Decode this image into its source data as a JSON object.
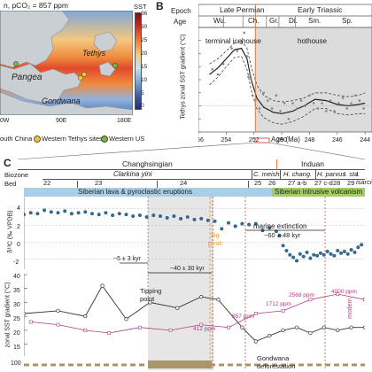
{
  "panelA": {
    "header": "n, pCO₂ = 857 ppm",
    "sst_label": "SST",
    "sst_ticks": [
      "36",
      "30",
      "25",
      "20",
      "15",
      "10",
      "5",
      "0"
    ],
    "map_labels": {
      "tethys": "Tethys",
      "pangea": "Pangea",
      "gondwana": "Gondwana"
    },
    "lon_ticks": [
      "0W",
      "90E",
      "180E"
    ],
    "legend": [
      "outh China",
      "Western Tethys sites",
      "Western US"
    ]
  },
  "panelB": {
    "letter": "B",
    "epoch_label": "Epoch",
    "age_label": "Age",
    "epochs": [
      "Late Permian",
      "Early Triassic"
    ],
    "ages": [
      "Wu.",
      "Ch.",
      "Gr.",
      "Di.",
      "Sm.",
      "Sp."
    ],
    "annotations": [
      "terminal icehouse",
      "hothouse"
    ],
    "ylabel": "Tethys zonal SST gradient (°C)",
    "xlabel": "Age (Ma)",
    "xticks": [
      "256",
      "254",
      "252",
      "250",
      "248",
      "246",
      "244"
    ],
    "yticks": [
      "40",
      "35",
      "30",
      "25",
      "20",
      "15",
      "10",
      "5",
      "0"
    ]
  },
  "panelC": {
    "letter": "C",
    "stages": [
      "Changhsingian",
      "Induan"
    ],
    "biozone_label": "Biozone",
    "bed_label": "Bed",
    "biozones": [
      "Clarkina yini",
      "C. meish.",
      "H. chang.",
      "H. parvus",
      "I. sta",
      "I. isarcica"
    ],
    "beds": [
      "22",
      "23",
      "24",
      "25",
      "26",
      "27 a-b",
      "27 c-d",
      "28",
      "29"
    ],
    "bars": [
      "Siberian lava & pyroclastic eruptions",
      "Siberian intrusive volcanism"
    ],
    "d13c_ylabel": "δ¹³C (‰ VPDB)",
    "d13c_yticks": [
      "4",
      "2",
      "0",
      "-2"
    ],
    "hg_peak": "Hg peak",
    "marine_extinction": "marine extinction",
    "extinction_age": "~60 ± 48 kyr",
    "interval_1": "~5 ± 3 kyr",
    "interval_2": "~40 ± 30 kyr",
    "tipping_point": "Tipping point",
    "co2_labels": [
      "412 ppm",
      "857 ppm",
      "1712 ppm",
      "2568 ppm",
      "4000 ppm"
    ],
    "modern": "modern",
    "sst_ylabel": "zonal SST gradient (°C)",
    "sst_yticks": [
      "40",
      "35",
      "30",
      "25",
      "20",
      "15"
    ],
    "bottom_tick": "100",
    "bottom_label": "Gondwana deforestation"
  },
  "chart_data": [
    {
      "type": "scatter",
      "xlabel": "Age (Ma)",
      "ylabel": "Tethys zonal SST gradient (°C)",
      "xlim": [
        256,
        243.5
      ],
      "ylim": [
        0,
        40
      ],
      "points": [
        [
          255.0,
          24
        ],
        [
          254.6,
          22
        ],
        [
          254.2,
          26
        ],
        [
          253.6,
          32
        ],
        [
          253.2,
          31
        ],
        [
          252.9,
          34
        ],
        [
          252.7,
          38
        ],
        [
          252.5,
          29
        ],
        [
          252.4,
          21
        ],
        [
          252.3,
          22
        ],
        [
          252.2,
          20
        ],
        [
          252.1,
          14
        ],
        [
          251.9,
          12
        ],
        [
          251.6,
          9
        ],
        [
          251.3,
          15
        ],
        [
          251.0,
          12
        ],
        [
          250.7,
          9
        ],
        [
          250.4,
          14
        ],
        [
          250.1,
          8
        ],
        [
          249.8,
          11
        ],
        [
          249.5,
          5
        ],
        [
          249.2,
          11
        ],
        [
          248.9,
          9
        ],
        [
          248.6,
          12
        ],
        [
          248.3,
          10
        ],
        [
          248.0,
          14
        ],
        [
          247.7,
          11
        ],
        [
          247.4,
          9
        ],
        [
          247.1,
          11
        ],
        [
          246.8,
          8
        ],
        [
          246.5,
          12
        ],
        [
          246.2,
          8
        ],
        [
          245.9,
          11
        ],
        [
          245.6,
          13
        ],
        [
          245.3,
          9
        ],
        [
          245.0,
          11
        ],
        [
          244.7,
          14
        ],
        [
          244.4,
          12
        ],
        [
          244.1,
          9
        ]
      ],
      "fit_line": [
        [
          255.2,
          22
        ],
        [
          254.6,
          24.5
        ],
        [
          254.0,
          28
        ],
        [
          253.4,
          31.5
        ],
        [
          252.9,
          32
        ],
        [
          252.5,
          28
        ],
        [
          252.2,
          20
        ],
        [
          251.8,
          13
        ],
        [
          251.3,
          9.5
        ],
        [
          250.6,
          7.5
        ],
        [
          250.0,
          7
        ],
        [
          249.2,
          8
        ],
        [
          248.4,
          10
        ],
        [
          247.6,
          12.5
        ],
        [
          246.8,
          12
        ],
        [
          246.0,
          10.5
        ],
        [
          245.2,
          10
        ],
        [
          244.5,
          10.5
        ],
        [
          244.0,
          11
        ]
      ],
      "upper_band": [
        [
          255.2,
          26
        ],
        [
          254.6,
          28
        ],
        [
          254.0,
          31
        ],
        [
          253.4,
          34
        ],
        [
          252.9,
          35
        ],
        [
          252.5,
          32
        ],
        [
          252.2,
          25
        ],
        [
          251.8,
          18
        ],
        [
          251.3,
          14
        ],
        [
          250.6,
          12
        ],
        [
          250.0,
          11.5
        ],
        [
          249.2,
          12
        ],
        [
          248.4,
          13
        ],
        [
          247.6,
          15
        ],
        [
          246.8,
          15
        ],
        [
          246.0,
          14
        ],
        [
          245.2,
          13.5
        ],
        [
          244.5,
          14
        ],
        [
          244.0,
          15
        ]
      ],
      "lower_band": [
        [
          255.2,
          18
        ],
        [
          254.6,
          21
        ],
        [
          254.0,
          25
        ],
        [
          253.4,
          28.5
        ],
        [
          252.9,
          29
        ],
        [
          252.5,
          24
        ],
        [
          252.2,
          16
        ],
        [
          251.8,
          9
        ],
        [
          251.3,
          5.5
        ],
        [
          250.6,
          3.5
        ],
        [
          250.0,
          3
        ],
        [
          249.2,
          4
        ],
        [
          248.4,
          6
        ],
        [
          247.6,
          9
        ],
        [
          246.8,
          9
        ],
        [
          246.0,
          7
        ],
        [
          245.2,
          6.5
        ],
        [
          244.5,
          7
        ],
        [
          244.0,
          7
        ]
      ],
      "boundary_age": 251.9
    },
    {
      "type": "scatter",
      "ylabel": "δ¹³C (‰ VPDB)",
      "ylim": [
        -3,
        5
      ],
      "points": [
        [
          0.0,
          3.3
        ],
        [
          0.02,
          3.5
        ],
        [
          0.04,
          3.4
        ],
        [
          0.06,
          3.8
        ],
        [
          0.08,
          3.6
        ],
        [
          0.1,
          3.5
        ],
        [
          0.12,
          3.7
        ],
        [
          0.14,
          3.4
        ],
        [
          0.16,
          3.5
        ],
        [
          0.18,
          3.6
        ],
        [
          0.2,
          3.4
        ],
        [
          0.22,
          3.3
        ],
        [
          0.24,
          3.5
        ],
        [
          0.26,
          3.2
        ],
        [
          0.28,
          3.4
        ],
        [
          0.3,
          3.3
        ],
        [
          0.32,
          3.1
        ],
        [
          0.34,
          3.2
        ],
        [
          0.36,
          3.0
        ],
        [
          0.38,
          3.2
        ],
        [
          0.4,
          3.1
        ],
        [
          0.42,
          2.9
        ],
        [
          0.44,
          3.1
        ],
        [
          0.46,
          2.8
        ],
        [
          0.48,
          3.0
        ],
        [
          0.5,
          2.7
        ],
        [
          0.52,
          2.8
        ],
        [
          0.54,
          2.6
        ],
        [
          0.56,
          2.5
        ],
        [
          0.58,
          1.6
        ],
        [
          0.6,
          2.3
        ],
        [
          0.62,
          1.9
        ],
        [
          0.64,
          2.2
        ],
        [
          0.66,
          2.1
        ],
        [
          0.68,
          2.2
        ],
        [
          0.7,
          1.4
        ],
        [
          0.72,
          1.7
        ],
        [
          0.74,
          1.3
        ],
        [
          0.75,
          0.8
        ],
        [
          0.76,
          -0.4
        ],
        [
          0.77,
          -1.0
        ],
        [
          0.78,
          -1.5
        ],
        [
          0.79,
          -1.8
        ],
        [
          0.8,
          -2.2
        ],
        [
          0.81,
          -1.4
        ],
        [
          0.82,
          -1.7
        ],
        [
          0.83,
          -1.2
        ],
        [
          0.84,
          -1.9
        ],
        [
          0.85,
          -1.5
        ],
        [
          0.86,
          -1.6
        ],
        [
          0.87,
          -1.3
        ],
        [
          0.88,
          -1.5
        ],
        [
          0.89,
          -1.1
        ],
        [
          0.9,
          -1.4
        ],
        [
          0.91,
          -1.6
        ],
        [
          0.92,
          -1.0
        ],
        [
          0.93,
          -1.3
        ],
        [
          0.94,
          -1.1
        ],
        [
          0.95,
          -1.4
        ],
        [
          0.96,
          -0.9
        ],
        [
          0.97,
          -1.2
        ],
        [
          0.98,
          -0.6
        ],
        [
          0.99,
          -0.3
        ]
      ]
    },
    {
      "type": "line",
      "ylabel": "zonal SST gradient (°C)",
      "ylim": [
        12,
        40
      ],
      "series": [
        {
          "color": "#333333",
          "points": [
            [
              0.0,
              26
            ],
            [
              0.1,
              27
            ],
            [
              0.18,
              25
            ],
            [
              0.23,
              36
            ],
            [
              0.3,
              24
            ],
            [
              0.37,
              30
            ],
            [
              0.45,
              28
            ],
            [
              0.52,
              32
            ],
            [
              0.57,
              31
            ],
            [
              0.64,
              21
            ],
            [
              0.68,
              16
            ],
            [
              0.72,
              18
            ],
            [
              0.76,
              20
            ],
            [
              0.8,
              21
            ],
            [
              0.84,
              19
            ],
            [
              0.88,
              21
            ],
            [
              0.92,
              20
            ],
            [
              0.96,
              21
            ],
            [
              1.0,
              21
            ]
          ]
        },
        {
          "color": "#b0407f",
          "points": [
            [
              0.02,
              23
            ],
            [
              0.1,
              22
            ],
            [
              0.18,
              20
            ],
            [
              0.25,
              19
            ],
            [
              0.34,
              21
            ],
            [
              0.43,
              20
            ],
            [
              0.52,
              22
            ],
            [
              0.6,
              21
            ],
            [
              0.68,
              26
            ],
            [
              0.76,
              27
            ],
            [
              0.84,
              31
            ],
            [
              0.92,
              33
            ],
            [
              1.0,
              31
            ]
          ]
        }
      ]
    }
  ],
  "colors": {
    "sea_gray": "#c9cfd3",
    "boundary_orange": "#e07a3c",
    "induan_band": "#dcdcdc",
    "lava_bar": "#a8cfe8",
    "intrusive_bar": "#a4cc6a",
    "d13c_points": "#2f6f9a",
    "co2_pink": "#b0407f",
    "hg_orange": "#e3a43b",
    "gondwana_olive": "#a8956a"
  }
}
